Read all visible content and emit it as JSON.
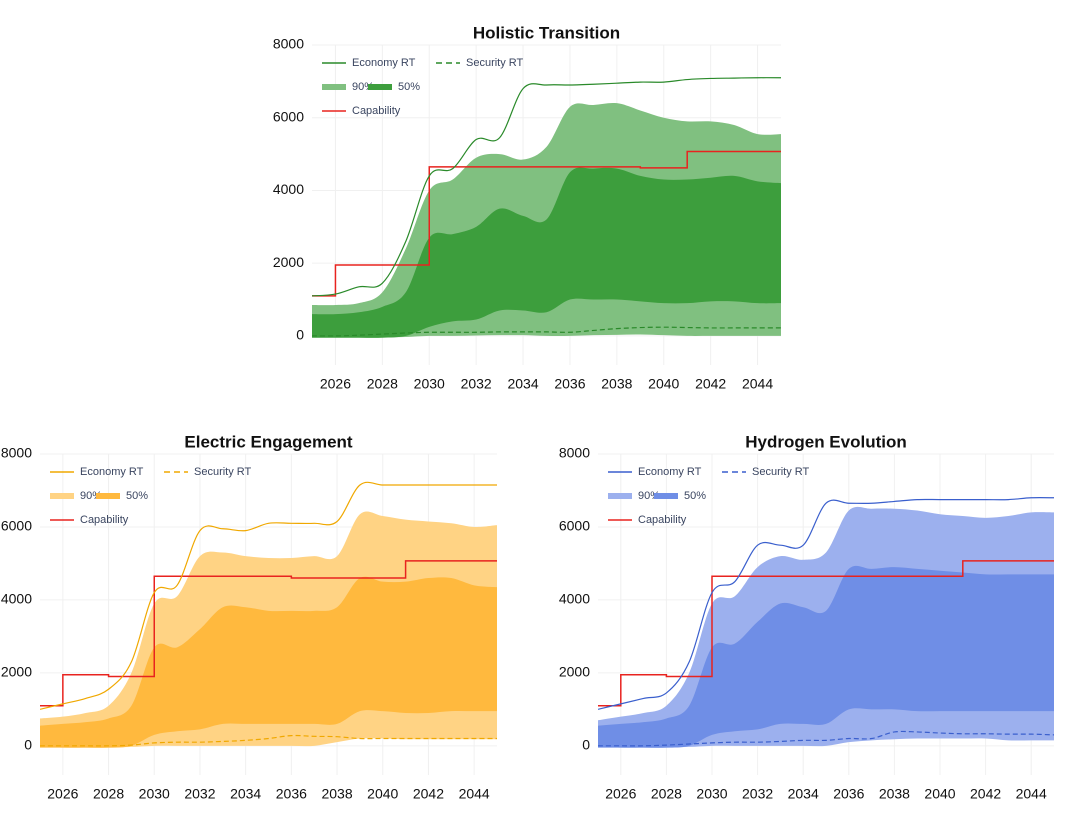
{
  "chart_data": [
    {
      "type": "line",
      "title": "Holistic Transition",
      "x": [
        2025,
        2026,
        2027,
        2028,
        2029,
        2030,
        2031,
        2032,
        2033,
        2034,
        2035,
        2036,
        2037,
        2038,
        2039,
        2040,
        2041,
        2042,
        2043,
        2044,
        2045
      ],
      "xlim": [
        2025,
        2045
      ],
      "xticks": [
        2026,
        2028,
        2030,
        2032,
        2034,
        2036,
        2038,
        2040,
        2042,
        2044
      ],
      "ylim": [
        -800,
        8000
      ],
      "yticks": [
        0,
        2000,
        4000,
        6000,
        8000
      ],
      "grid": true,
      "legend": "upper left",
      "series": [
        {
          "name": "Economy RT",
          "style": "line",
          "color": "#2a8a2a",
          "values": [
            1100,
            1150,
            1350,
            1450,
            2600,
            4400,
            4600,
            5400,
            5450,
            6800,
            6900,
            6900,
            6920,
            6950,
            6980,
            6980,
            7050,
            7080,
            7090,
            7100,
            7100
          ]
        },
        {
          "name": "Security RT",
          "style": "dashed",
          "color": "#2a8a2a",
          "values": [
            0,
            0,
            20,
            50,
            80,
            100,
            100,
            100,
            110,
            110,
            110,
            100,
            150,
            200,
            230,
            240,
            230,
            220,
            220,
            220,
            220
          ]
        },
        {
          "name": "90%",
          "style": "band",
          "color": "#80c080",
          "values": [
            850,
            850,
            900,
            1200,
            2400,
            4000,
            4300,
            4900,
            5000,
            4850,
            5200,
            6300,
            6350,
            6400,
            6200,
            6000,
            5900,
            5900,
            5800,
            5550,
            5550
          ],
          "lower": [
            0,
            -20,
            -30,
            -40,
            -30,
            0,
            0,
            10,
            20,
            20,
            0,
            0,
            20,
            30,
            40,
            20,
            0,
            0,
            0,
            0,
            0
          ]
        },
        {
          "name": "50%",
          "style": "band",
          "color": "#3d9e3d",
          "values": [
            600,
            600,
            650,
            800,
            1200,
            2700,
            2800,
            3000,
            3500,
            3300,
            3200,
            4500,
            4600,
            4600,
            4400,
            4300,
            4300,
            4350,
            4400,
            4250,
            4200
          ],
          "lower": [
            -50,
            -50,
            -50,
            -50,
            0,
            250,
            400,
            450,
            700,
            700,
            650,
            1000,
            1000,
            1000,
            950,
            900,
            900,
            950,
            950,
            900,
            900
          ]
        },
        {
          "name": "Capability",
          "style": "step",
          "color": "#e8231f",
          "values": [
            1100,
            1950,
            1950,
            1950,
            1950,
            4650,
            4650,
            4650,
            4650,
            4650,
            4650,
            4650,
            4650,
            4650,
            4620,
            4620,
            5070,
            5070,
            5070,
            5070,
            5070
          ]
        }
      ]
    },
    {
      "type": "line",
      "title": "Electric Engagement",
      "x": [
        2025,
        2026,
        2027,
        2028,
        2029,
        2030,
        2031,
        2032,
        2033,
        2034,
        2035,
        2036,
        2037,
        2038,
        2039,
        2040,
        2041,
        2042,
        2043,
        2044,
        2045
      ],
      "xlim": [
        2025,
        2045
      ],
      "xticks": [
        2026,
        2028,
        2030,
        2032,
        2034,
        2036,
        2038,
        2040,
        2042,
        2044
      ],
      "ylim": [
        -800,
        8000
      ],
      "yticks": [
        0,
        2000,
        4000,
        6000,
        8000
      ],
      "grid": true,
      "legend": "upper left",
      "series": [
        {
          "name": "Economy RT",
          "style": "line",
          "color": "#f0a800",
          "values": [
            1000,
            1150,
            1300,
            1550,
            2300,
            4200,
            4400,
            5900,
            5950,
            5900,
            6100,
            6100,
            6100,
            6150,
            7150,
            7150,
            7150,
            7150,
            7150,
            7150,
            7150
          ]
        },
        {
          "name": "Security RT",
          "style": "dashed",
          "color": "#f0a800",
          "values": [
            0,
            0,
            0,
            0,
            20,
            80,
            100,
            100,
            120,
            150,
            200,
            280,
            260,
            250,
            200,
            200,
            200,
            200,
            200,
            200,
            200
          ]
        },
        {
          "name": "90%",
          "style": "band",
          "color": "#ffd384",
          "values": [
            750,
            800,
            900,
            1100,
            2000,
            3900,
            4100,
            5200,
            5300,
            5200,
            5150,
            5150,
            5200,
            5200,
            6350,
            6300,
            6200,
            6150,
            6100,
            6000,
            6050
          ],
          "lower": [
            0,
            -50,
            -50,
            -50,
            -30,
            0,
            0,
            0,
            0,
            0,
            0,
            0,
            0,
            100,
            200,
            200,
            180,
            180,
            180,
            180,
            180
          ]
        },
        {
          "name": "50%",
          "style": "band",
          "color": "#ffb93e",
          "values": [
            550,
            600,
            650,
            750,
            1100,
            2700,
            2700,
            3200,
            3800,
            3800,
            3700,
            3700,
            3700,
            3800,
            4600,
            4500,
            4500,
            4600,
            4600,
            4400,
            4350
          ],
          "lower": [
            -50,
            -50,
            -50,
            -50,
            0,
            300,
            400,
            450,
            600,
            600,
            600,
            600,
            600,
            600,
            950,
            950,
            900,
            900,
            950,
            950,
            950
          ]
        },
        {
          "name": "Capability",
          "style": "step",
          "color": "#e8231f",
          "values": [
            1100,
            1950,
            1950,
            1900,
            1900,
            4650,
            4650,
            4650,
            4650,
            4650,
            4650,
            4600,
            4600,
            4600,
            4600,
            4600,
            5070,
            5070,
            5070,
            5070,
            5070
          ]
        }
      ]
    },
    {
      "type": "line",
      "title": "Hydrogen Evolution",
      "x": [
        2025,
        2026,
        2027,
        2028,
        2029,
        2030,
        2031,
        2032,
        2033,
        2034,
        2035,
        2036,
        2037,
        2038,
        2039,
        2040,
        2041,
        2042,
        2043,
        2044,
        2045
      ],
      "xlim": [
        2025,
        2045
      ],
      "xticks": [
        2026,
        2028,
        2030,
        2032,
        2034,
        2036,
        2038,
        2040,
        2042,
        2044
      ],
      "ylim": [
        -800,
        8000
      ],
      "yticks": [
        0,
        2000,
        4000,
        6000,
        8000
      ],
      "grid": true,
      "legend": "upper left",
      "series": [
        {
          "name": "Economy RT",
          "style": "line",
          "color": "#3a5fcd",
          "values": [
            1000,
            1150,
            1300,
            1450,
            2300,
            4200,
            4500,
            5500,
            5500,
            5500,
            6650,
            6650,
            6650,
            6700,
            6750,
            6750,
            6750,
            6750,
            6750,
            6800,
            6800
          ]
        },
        {
          "name": "Security RT",
          "style": "dashed",
          "color": "#3a5fcd",
          "values": [
            0,
            0,
            0,
            20,
            50,
            80,
            100,
            100,
            120,
            150,
            150,
            200,
            200,
            380,
            380,
            350,
            330,
            330,
            320,
            320,
            300
          ]
        },
        {
          "name": "90%",
          "style": "band",
          "color": "#9cb0ee",
          "values": [
            700,
            800,
            900,
            1100,
            2000,
            3900,
            4100,
            4900,
            5200,
            5100,
            5300,
            6450,
            6500,
            6500,
            6450,
            6350,
            6300,
            6250,
            6300,
            6400,
            6400
          ],
          "lower": [
            0,
            -50,
            -50,
            -50,
            -30,
            0,
            0,
            0,
            0,
            0,
            0,
            100,
            150,
            180,
            200,
            200,
            200,
            200,
            150,
            150,
            150
          ]
        },
        {
          "name": "50%",
          "style": "band",
          "color": "#6f8ee6",
          "values": [
            550,
            600,
            650,
            750,
            1100,
            2700,
            2800,
            3400,
            3900,
            3800,
            3700,
            4850,
            4850,
            4900,
            4850,
            4800,
            4750,
            4700,
            4700,
            4700,
            4700
          ],
          "lower": [
            -50,
            -50,
            -50,
            -50,
            0,
            300,
            400,
            450,
            600,
            600,
            600,
            1000,
            1000,
            1000,
            950,
            950,
            950,
            950,
            950,
            950,
            950
          ]
        },
        {
          "name": "Capability",
          "style": "step",
          "color": "#e8231f",
          "values": [
            1100,
            1950,
            1950,
            1900,
            1900,
            4650,
            4650,
            4650,
            4650,
            4650,
            4650,
            4650,
            4650,
            4650,
            4650,
            4650,
            5070,
            5070,
            5070,
            5070,
            5070
          ]
        }
      ]
    }
  ]
}
